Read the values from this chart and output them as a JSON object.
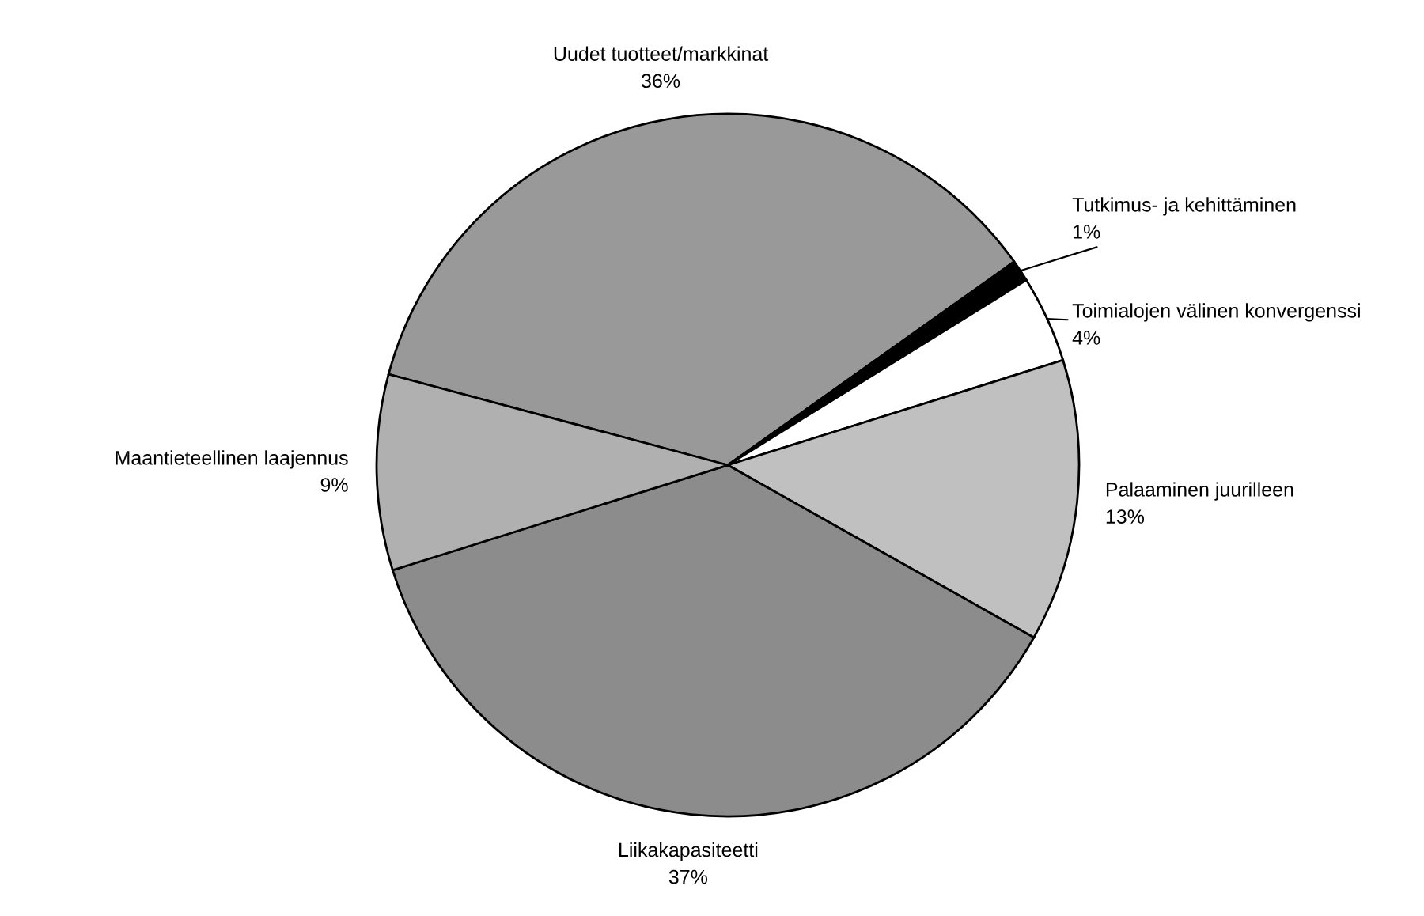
{
  "chart_data": {
    "type": "pie",
    "categories": [
      "Uudet tuotteet/markkinat",
      "Tutkimus- ja kehittäminen",
      "Toimialojen välinen konvergenssi",
      "Palaaminen juurilleen",
      "Liikakapasiteetti",
      "Maantieteellinen laajennus"
    ],
    "values": [
      36,
      1,
      4,
      13,
      37,
      9
    ],
    "value_labels": [
      "36%",
      "1%",
      "4%",
      "13%",
      "37%",
      "9%"
    ],
    "colors": [
      "#999999",
      "#000000",
      "#ffffff",
      "#c0c0c0",
      "#8c8c8c",
      "#b0b0b0"
    ],
    "legend": false
  }
}
